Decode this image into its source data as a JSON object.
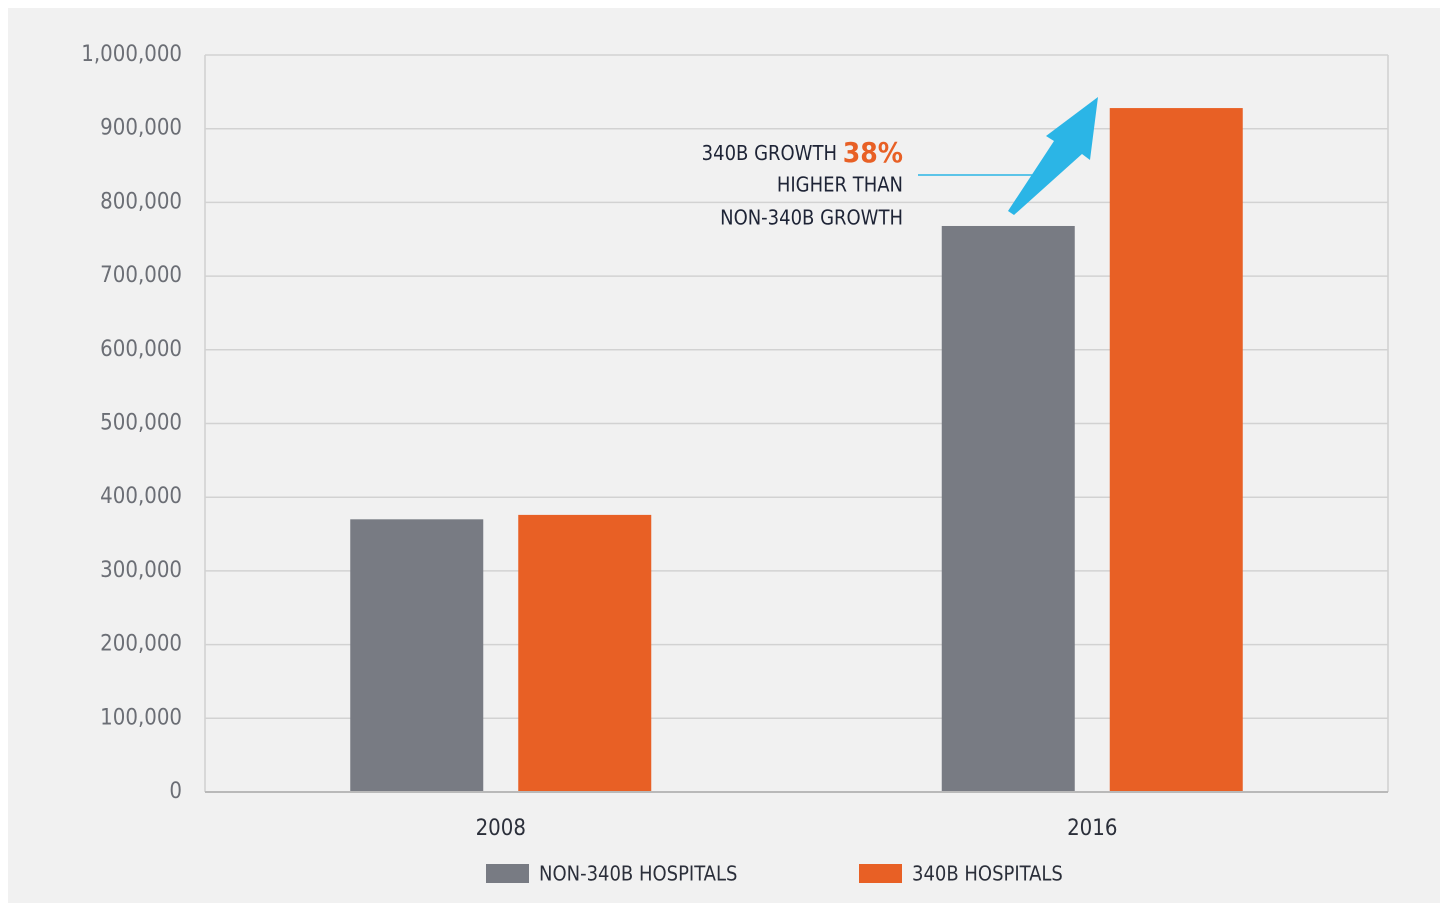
{
  "chart_data": {
    "type": "bar",
    "categories": [
      "2008",
      "2016"
    ],
    "series": [
      {
        "name": "NON-340B HOSPITALS",
        "color": "#787b83",
        "values": [
          370000,
          768000
        ]
      },
      {
        "name": "340B HOSPITALS",
        "color": "#e86025",
        "values": [
          376000,
          928000
        ]
      }
    ],
    "ylim": [
      0,
      1000000
    ],
    "yticks": [
      0,
      {
        "value": 100000,
        "label": "100,000"
      },
      {
        "value": 200000,
        "label": "200,000"
      },
      {
        "value": 300000,
        "label": "300,000"
      },
      {
        "value": 400000,
        "label": "400,000"
      },
      {
        "value": 500000,
        "label": "500,000"
      },
      {
        "value": 600000,
        "label": "600,000"
      },
      {
        "value": 700000,
        "label": "700,000"
      },
      {
        "value": 800000,
        "label": "800,000"
      },
      {
        "value": 900000,
        "label": "900,000"
      },
      {
        "value": 1000000,
        "label": "1,000,000"
      }
    ],
    "grid": true,
    "legend": "bottom",
    "annotation": {
      "lines": [
        "340B GROWTH ",
        "38%",
        "HIGHER THAN",
        "NON-340B GROWTH"
      ],
      "highlight_color": "#e86025",
      "arrow_color": "#2bb5e6"
    }
  }
}
